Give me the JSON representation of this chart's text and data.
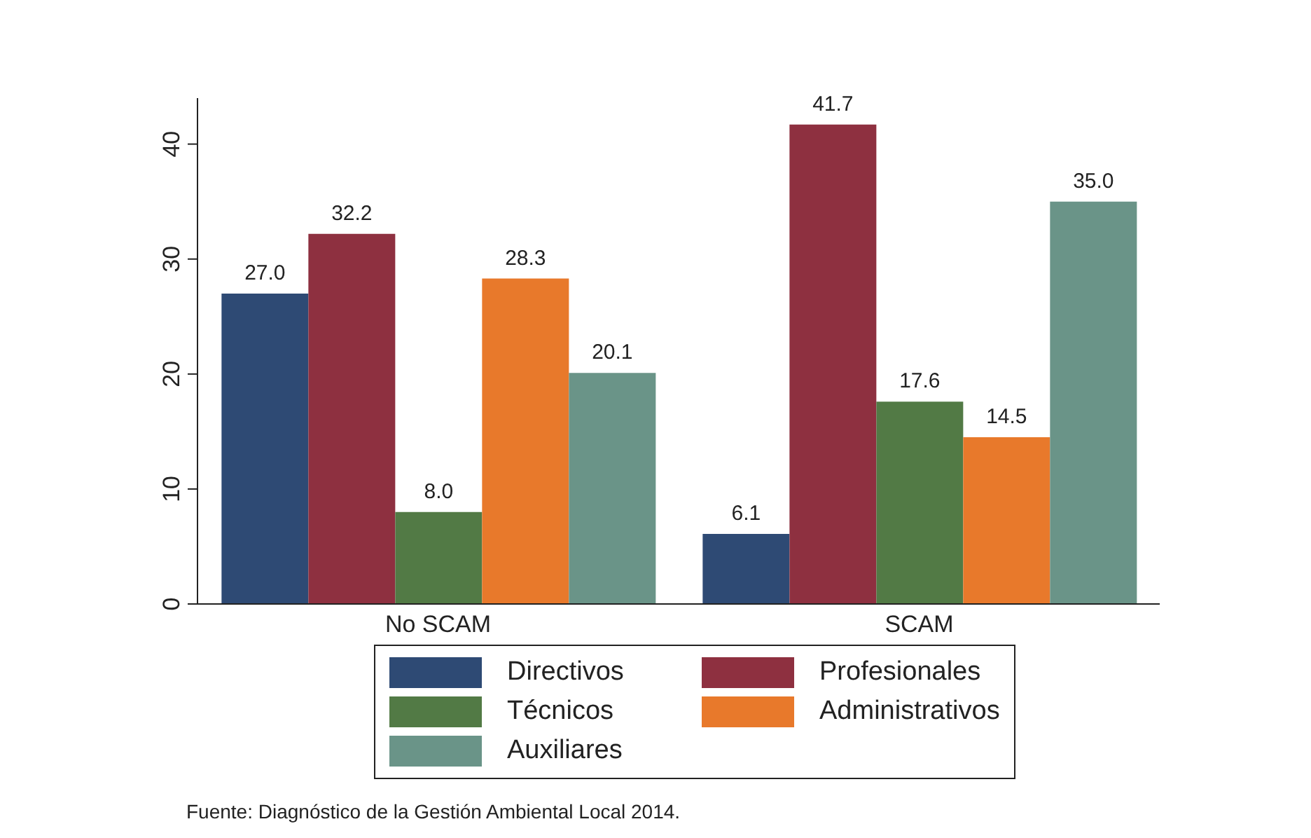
{
  "chart_data": {
    "type": "bar",
    "categories": [
      "No SCAM",
      "SCAM"
    ],
    "series": [
      {
        "name": "Directivos",
        "color": "#2e4a74",
        "values": [
          27.0,
          6.1
        ],
        "value_labels": [
          "27.0",
          "6.1"
        ]
      },
      {
        "name": "Profesionales",
        "color": "#8e3040",
        "values": [
          32.2,
          41.7
        ],
        "value_labels": [
          "32.2",
          "41.7"
        ]
      },
      {
        "name": "Técnicos",
        "color": "#527a45",
        "values": [
          8.0,
          17.6
        ],
        "value_labels": [
          "8.0",
          "17.6"
        ]
      },
      {
        "name": "Administrativos",
        "color": "#e8792b",
        "values": [
          28.3,
          14.5
        ],
        "value_labels": [
          "28.3",
          "14.5"
        ]
      },
      {
        "name": "Auxiliares",
        "color": "#6a9488",
        "values": [
          20.1,
          35.0
        ],
        "value_labels": [
          "20.1",
          "35.0"
        ]
      }
    ],
    "ylim": [
      0,
      44
    ],
    "yticks": [
      0,
      10,
      20,
      30,
      40
    ],
    "grid": false,
    "legend": "bottom",
    "annotations": [
      "Fuente: Diagnóstico de la Gestión Ambiental Local 2014."
    ]
  }
}
